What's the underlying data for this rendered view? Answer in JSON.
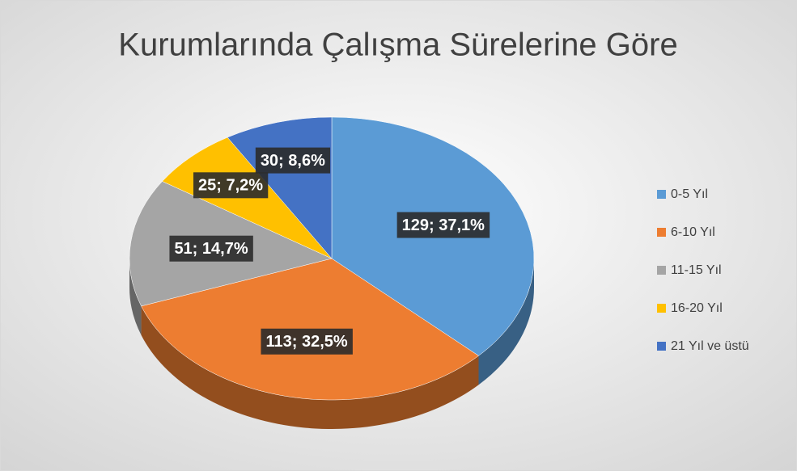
{
  "chart_data": {
    "type": "pie",
    "title": "Kurumlarında Çalışma Sürelerine Göre",
    "categories": [
      "0-5 Yıl",
      "6-10 Yıl",
      "11-15 Yıl",
      "16-20 Yıl",
      "21 Yıl ve üstü"
    ],
    "values": [
      129,
      113,
      51,
      25,
      30
    ],
    "value_labels": [
      "129; 37,1%",
      "113; 32,5%",
      "51; 14,7%",
      "25; 7,2%",
      "30; 8,6%"
    ],
    "colors": [
      "#5b9bd5",
      "#ed7d31",
      "#a5a5a5",
      "#ffc000",
      "#4472c4"
    ],
    "legend": "right"
  }
}
